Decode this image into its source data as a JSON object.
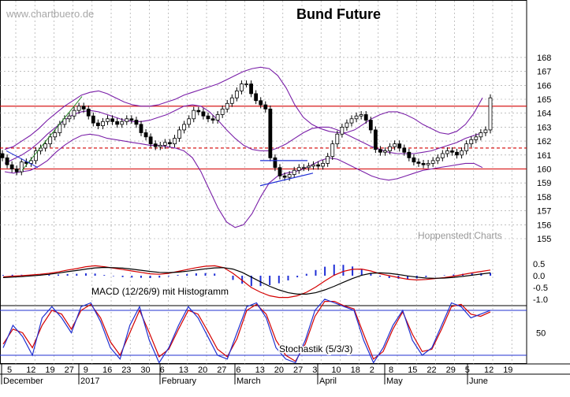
{
  "header": {
    "watermark": "www.chartbuero.de",
    "title": "Bund Future",
    "credit": "Hoppenstedt Charts"
  },
  "colors": {
    "background": "#ffffff",
    "grid": "#9a9a9a",
    "band": "#7a1fa8",
    "level_red": "#d40000",
    "macd_hist": "#1f2fd6",
    "stoch_k": "#2030d0",
    "stoch_d": "#d40000",
    "trendline_green": "#2a8a2a",
    "trendline_blue": "#1f2fd6"
  },
  "chart_data": [
    {
      "panel": "price",
      "type": "candlestick",
      "title": "Bund Future",
      "ylim": [
        154,
        168.5
      ],
      "y_ticks": [
        "155",
        "156",
        "157",
        "158",
        "159",
        "160",
        "161",
        "162",
        "163",
        "164",
        "165",
        "166",
        "167",
        "168"
      ],
      "reference_lines": [
        {
          "value": 164.5,
          "style": "solid",
          "color": "red"
        },
        {
          "value": 161.5,
          "style": "dashed",
          "color": "red"
        },
        {
          "value": 160.0,
          "style": "solid",
          "color": "red"
        }
      ],
      "close": [
        160.8,
        160.3,
        160.0,
        159.8,
        160.5,
        160.4,
        160.6,
        161.3,
        161.5,
        161.8,
        162.3,
        162.6,
        163.2,
        163.6,
        163.8,
        164.2,
        164.5,
        164.3,
        163.8,
        163.3,
        163.1,
        163.4,
        163.6,
        163.4,
        163.2,
        163.4,
        163.6,
        163.5,
        163.2,
        162.6,
        162.3,
        161.8,
        161.6,
        161.7,
        161.9,
        161.8,
        162.2,
        162.8,
        163.2,
        163.6,
        164.2,
        164.1,
        163.8,
        163.6,
        163.5,
        163.9,
        164.3,
        164.7,
        165.1,
        165.6,
        166.1,
        166.1,
        165.4,
        164.9,
        164.6,
        164.3,
        160.8,
        160.1,
        159.5,
        159.4,
        159.6,
        159.9,
        160.1,
        160.1,
        160.2,
        160.3,
        160.2,
        160.4,
        160.9,
        161.8,
        162.5,
        163.0,
        163.3,
        163.6,
        163.8,
        163.9,
        163.5,
        162.8,
        161.4,
        161.2,
        161.3,
        161.6,
        161.8,
        161.5,
        161.2,
        160.8,
        160.5,
        160.4,
        160.3,
        160.4,
        160.6,
        160.8,
        161.1,
        161.3,
        161.2,
        161.0,
        161.3,
        161.8,
        162.1,
        162.3,
        162.6,
        162.8,
        165.1
      ],
      "bollinger_upper": [
        161.4,
        161.6,
        162.0,
        162.4,
        162.9,
        163.5,
        164.0,
        164.5,
        164.9,
        165.3,
        165.5,
        165.6,
        165.4,
        165.1,
        164.8,
        164.6,
        164.5,
        164.5,
        164.6,
        164.8,
        165.0,
        165.3,
        165.5,
        165.7,
        165.9,
        166.1,
        166.4,
        166.7,
        167.0,
        167.2,
        167.3,
        167.2,
        166.7,
        165.8,
        164.6,
        163.7,
        163.2,
        162.9,
        162.7,
        162.6,
        162.6,
        162.8,
        163.2,
        163.6,
        163.9,
        164.1,
        164.1,
        163.9,
        163.6,
        163.2,
        162.9,
        162.6,
        162.5,
        162.7,
        163.2,
        164.0,
        165.1
      ],
      "bollinger_mid": [
        160.4,
        160.7,
        161.0,
        161.4,
        161.9,
        162.5,
        163.0,
        163.5,
        163.9,
        164.1,
        164.2,
        164.1,
        163.9,
        163.7,
        163.5,
        163.4,
        163.4,
        163.5,
        163.7,
        163.9,
        164.2,
        164.5,
        164.6,
        164.5,
        164.1,
        163.5,
        162.8,
        162.2,
        161.7,
        161.4,
        161.3,
        161.3,
        161.5,
        161.8,
        162.2,
        162.6,
        162.9,
        163.0,
        163.0,
        162.8,
        162.5,
        162.2,
        161.9,
        161.6,
        161.4,
        161.2,
        161.1,
        161.1,
        161.1,
        161.2,
        161.3,
        161.5,
        161.7,
        161.9,
        162.2,
        162.4,
        162.6
      ],
      "bollinger_lower": [
        159.8,
        159.7,
        159.8,
        159.9,
        160.2,
        160.6,
        161.2,
        161.7,
        162.1,
        162.4,
        162.5,
        162.4,
        162.2,
        162.1,
        162.0,
        161.9,
        161.8,
        161.7,
        161.7,
        161.6,
        161.5,
        161.3,
        160.8,
        159.8,
        158.5,
        157.2,
        156.2,
        155.8,
        156.0,
        156.8,
        158.0,
        159.0,
        159.5,
        159.7,
        159.8,
        160.0,
        160.3,
        160.6,
        160.8,
        160.7,
        160.4,
        160.1,
        159.8,
        159.5,
        159.3,
        159.2,
        159.3,
        159.5,
        159.7,
        159.9,
        160.0,
        160.1,
        160.2,
        160.3,
        160.4,
        160.4,
        160.1
      ]
    },
    {
      "panel": "macd",
      "type": "line+histogram",
      "title": "MACD (12/26/9) mit Histogramm",
      "ylim": [
        -1.15,
        0.65
      ],
      "y_ticks": [
        "0.5",
        "0.0",
        "-0.5",
        "-1.0"
      ],
      "macd": [
        -0.05,
        -0.02,
        0.0,
        0.03,
        0.06,
        0.1,
        0.16,
        0.24,
        0.3,
        0.38,
        0.42,
        0.38,
        0.32,
        0.26,
        0.2,
        0.14,
        0.08,
        0.06,
        0.1,
        0.18,
        0.26,
        0.34,
        0.4,
        0.42,
        0.34,
        0.1,
        -0.2,
        -0.5,
        -0.7,
        -0.85,
        -0.92,
        -0.92,
        -0.85,
        -0.7,
        -0.48,
        -0.22,
        0.02,
        0.18,
        0.27,
        0.28,
        0.2,
        0.08,
        0.0,
        -0.08,
        -0.15,
        -0.18,
        -0.16,
        -0.12,
        -0.08,
        -0.02,
        0.05,
        0.12,
        0.18,
        0.24
      ],
      "signal": [
        -0.08,
        -0.06,
        -0.04,
        -0.01,
        0.02,
        0.06,
        0.11,
        0.17,
        0.22,
        0.28,
        0.33,
        0.35,
        0.34,
        0.32,
        0.28,
        0.23,
        0.18,
        0.14,
        0.13,
        0.15,
        0.19,
        0.24,
        0.29,
        0.33,
        0.34,
        0.28,
        0.14,
        -0.06,
        -0.26,
        -0.45,
        -0.6,
        -0.72,
        -0.78,
        -0.78,
        -0.72,
        -0.6,
        -0.45,
        -0.28,
        -0.12,
        0.02,
        0.1,
        0.12,
        0.1,
        0.05,
        -0.01,
        -0.06,
        -0.1,
        -0.11,
        -0.1,
        -0.07,
        -0.03,
        0.02,
        0.07,
        0.12
      ],
      "histogram": [
        0.03,
        0.04,
        0.04,
        0.04,
        0.04,
        0.04,
        0.05,
        0.07,
        0.08,
        0.1,
        0.09,
        0.03,
        -0.02,
        -0.06,
        -0.08,
        -0.09,
        -0.1,
        -0.08,
        -0.03,
        0.03,
        0.07,
        0.1,
        0.11,
        0.09,
        0.0,
        -0.18,
        -0.34,
        -0.44,
        -0.44,
        -0.4,
        -0.32,
        -0.2,
        -0.07,
        0.08,
        0.24,
        0.38,
        0.47,
        0.46,
        0.39,
        0.26,
        0.1,
        -0.04,
        -0.1,
        -0.13,
        -0.14,
        -0.12,
        -0.06,
        -0.01,
        0.02,
        0.05,
        0.08,
        0.1,
        0.11,
        0.12
      ]
    },
    {
      "panel": "stochastic",
      "type": "line",
      "title": "Stochastik (5/3/3)",
      "ylim": [
        0,
        100
      ],
      "y_ticks": [
        "50"
      ],
      "reference_lines": [
        80,
        20
      ],
      "k": [
        30,
        60,
        45,
        20,
        70,
        85,
        70,
        50,
        85,
        90,
        65,
        30,
        15,
        60,
        85,
        40,
        10,
        30,
        60,
        85,
        70,
        45,
        20,
        15,
        50,
        85,
        90,
        70,
        30,
        15,
        10,
        40,
        80,
        95,
        90,
        85,
        80,
        40,
        10,
        30,
        60,
        80,
        40,
        20,
        30,
        60,
        90,
        85,
        70,
        75,
        80
      ],
      "d": [
        35,
        55,
        50,
        30,
        60,
        80,
        75,
        55,
        80,
        88,
        70,
        38,
        20,
        50,
        80,
        50,
        18,
        28,
        55,
        80,
        75,
        52,
        28,
        18,
        42,
        80,
        88,
        75,
        40,
        20,
        12,
        35,
        72,
        92,
        92,
        86,
        82,
        48,
        15,
        25,
        55,
        78,
        48,
        25,
        28,
        55,
        85,
        88,
        75,
        72,
        78
      ]
    }
  ],
  "x_axis": {
    "day_labels": [
      "5",
      "12",
      "19",
      "27",
      "9",
      "16",
      "23",
      "30",
      "6",
      "13",
      "20",
      "27",
      "6",
      "13",
      "20",
      "27",
      "3",
      "10",
      "18",
      "2",
      "8",
      "15",
      "22",
      "29",
      "5",
      "12",
      "19"
    ],
    "month_labels": [
      "December",
      "2017",
      "February",
      "March",
      "April",
      "May",
      "June"
    ]
  }
}
